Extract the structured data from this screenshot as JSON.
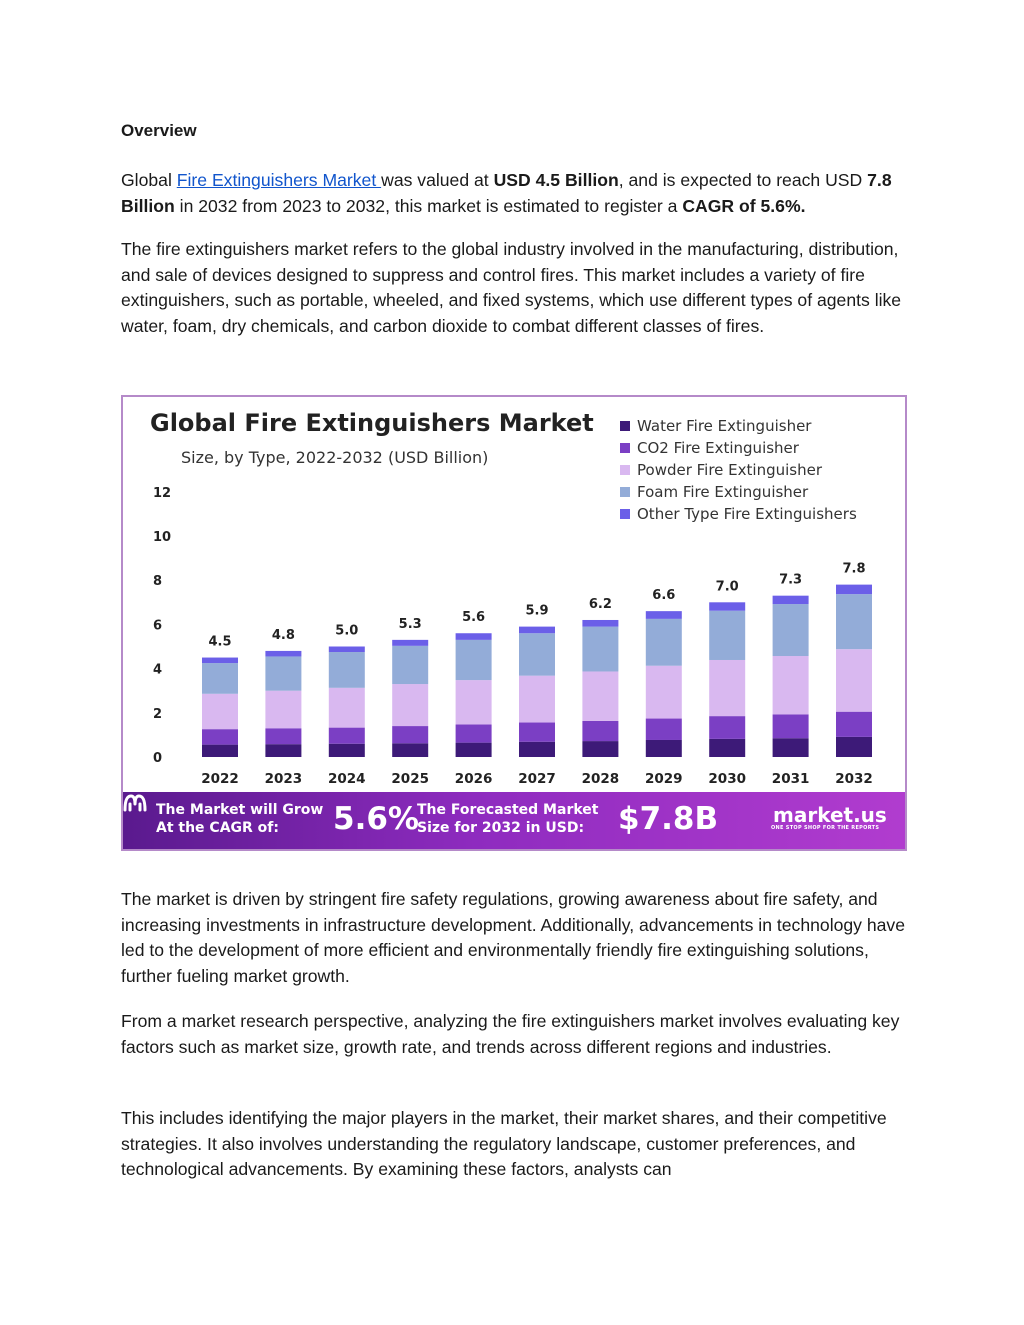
{
  "document": {
    "heading": "Overview",
    "p1": {
      "pre": "Global ",
      "link": "Fire Extinguishers Market ",
      "mid1": "was valued at ",
      "bold1": "USD 4.5 Billion",
      "mid2": ", and is expected to reach USD ",
      "bold2": "7.8 Billion",
      "mid3": " in 2032 from 2023 to 2032, this market is estimated to register a ",
      "bold3": "CAGR of 5.6%."
    },
    "p2": "The fire extinguishers market refers to the global industry involved in the manufacturing, distribution, and sale of devices designed to suppress and control fires. This market includes a variety of fire extinguishers, such as portable, wheeled, and fixed systems, which use different types of agents like water, foam, dry chemicals, and carbon dioxide to combat different classes of fires.",
    "p3": "The market is driven by stringent fire safety regulations, growing awareness about fire safety, and increasing investments in infrastructure development. Additionally, advancements in technology have led to the development of more efficient and environmentally friendly fire extinguishing solutions, further fueling market growth.",
    "p4": "From a market research perspective, analyzing the fire extinguishers market involves evaluating key factors such as market size, growth rate, and trends across different regions and industries.",
    "p5": "This includes identifying the major players in the market, their market shares, and their competitive strategies. It also involves understanding the regulatory landscape, customer preferences, and technological advancements. By examining these factors, analysts can"
  },
  "banner": {
    "grow_text": "The Market will Grow At the CAGR of:",
    "cagr": "5.6%",
    "forecast_text": "The Forecasted Market Size for 2032 in USD:",
    "forecast_value": "$7.8B",
    "brand": "market.us",
    "brand_tagline": "ONE STOP SHOP FOR THE REPORTS"
  },
  "chart_data": {
    "type": "bar",
    "stacked": true,
    "title": "Global Fire Extinguishers Market",
    "subtitle": "Size, by Type, 2022-2032 (USD Billion)",
    "categories": [
      "2022",
      "2023",
      "2024",
      "2025",
      "2026",
      "2027",
      "2028",
      "2029",
      "2030",
      "2031",
      "2032"
    ],
    "totals": [
      "4.5",
      "4.8",
      "5.0",
      "5.3",
      "5.6",
      "5.9",
      "6.2",
      "6.6",
      "7.0",
      "7.3",
      "7.8"
    ],
    "yticks": [
      "0",
      "2",
      "4",
      "6",
      "8",
      "10",
      "12"
    ],
    "ylim": [
      0,
      12
    ],
    "legend_position": "top-right",
    "series": [
      {
        "name": "Water Fire Extinguisher",
        "color": "#3d1a78",
        "values": [
          0.56,
          0.58,
          0.6,
          0.62,
          0.65,
          0.69,
          0.72,
          0.77,
          0.82,
          0.85,
          0.91
        ]
      },
      {
        "name": "CO2 Fire Extinguisher",
        "color": "#7b3fc4",
        "values": [
          0.7,
          0.72,
          0.73,
          0.78,
          0.82,
          0.87,
          0.91,
          0.97,
          1.03,
          1.08,
          1.14
        ]
      },
      {
        "name": "Powder Fire Extinguisher",
        "color": "#d9b8f0",
        "values": [
          1.6,
          1.7,
          1.8,
          1.9,
          2.01,
          2.12,
          2.24,
          2.39,
          2.54,
          2.64,
          2.83
        ]
      },
      {
        "name": "Foam Fire Extinguisher",
        "color": "#93acd8",
        "values": [
          1.39,
          1.55,
          1.62,
          1.73,
          1.82,
          1.92,
          2.03,
          2.12,
          2.23,
          2.35,
          2.49
        ]
      },
      {
        "name": "Other Type Fire Extinguishers",
        "color": "#6b5fe8",
        "values": [
          0.25,
          0.25,
          0.25,
          0.27,
          0.3,
          0.3,
          0.3,
          0.35,
          0.38,
          0.38,
          0.43
        ]
      }
    ]
  }
}
